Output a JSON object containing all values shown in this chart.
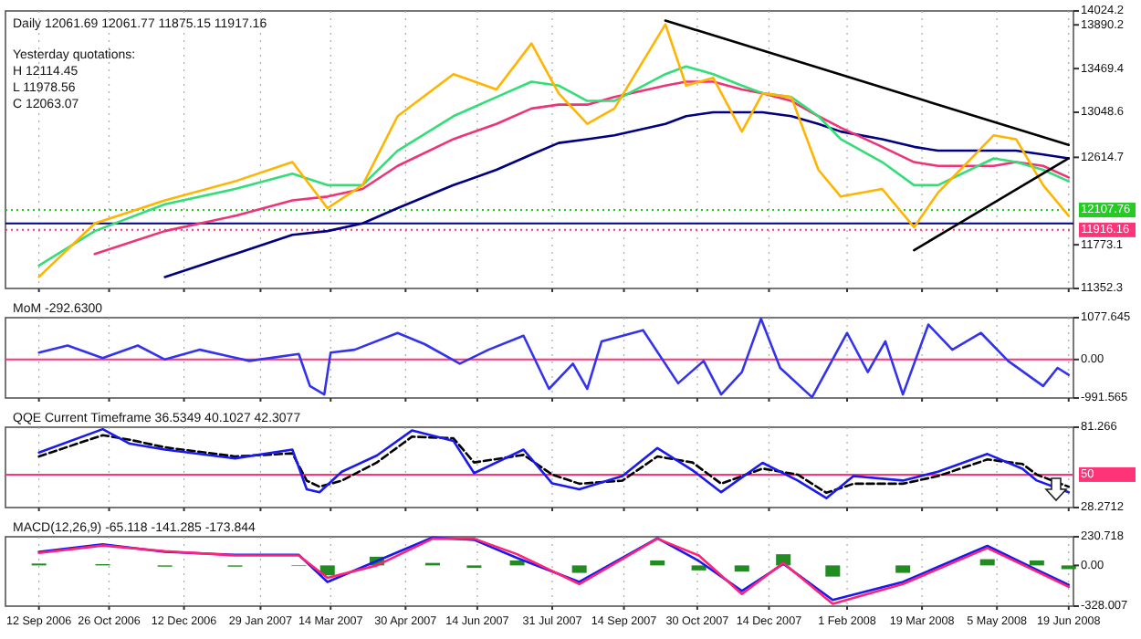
{
  "chart_data": [
    {
      "type": "line",
      "title": "Daily 12061.69 12061.77 11875.15 11917.16",
      "annotations": [
        "Yesterday quotations:",
        "H 12114.45",
        "L 11978.56",
        "C 12063.07"
      ],
      "tick_labels": "y",
      "grid": "x",
      "xlim": [
        "2006-08-22",
        "2008-06-22"
      ],
      "xticks": [
        {
          "value": "2006-09-12",
          "label": null
        },
        {
          "value": "2006-10-26",
          "label": null
        },
        {
          "value": "2006-12-12",
          "label": null
        },
        {
          "value": "2007-01-29",
          "label": null
        },
        {
          "value": "2007-03-14",
          "label": null
        },
        {
          "value": "2007-04-30",
          "label": null
        },
        {
          "value": "2007-06-14",
          "label": null
        },
        {
          "value": "2007-07-31",
          "label": null
        },
        {
          "value": "2007-09-14",
          "label": null
        },
        {
          "value": "2007-10-30",
          "label": null
        },
        {
          "value": "2007-12-14",
          "label": null
        },
        {
          "value": "2008-02-01",
          "label": null
        },
        {
          "value": "2008-03-19",
          "label": null
        },
        {
          "value": "2008-05-05",
          "label": null
        },
        {
          "value": "2008-06-19",
          "label": null
        }
      ],
      "ylim": [
        11352.3,
        14024.2
      ],
      "yticks": [
        11352.3,
        11773.1,
        12614.7,
        13048.6,
        13469.4,
        13890.2,
        14024.2
      ],
      "x": [
        "2006-09-12",
        "2006-10-17",
        "2006-11-30",
        "2007-01-13",
        "2007-02-18",
        "2007-03-12",
        "2007-04-03",
        "2007-04-25",
        "2007-05-30",
        "2007-06-26",
        "2007-07-18",
        "2007-08-04",
        "2007-08-22",
        "2007-09-08",
        "2007-10-10",
        "2007-10-23",
        "2007-11-09",
        "2007-11-27",
        "2007-12-10",
        "2007-12-28",
        "2008-01-14",
        "2008-01-28",
        "2008-02-23",
        "2008-03-14",
        "2008-03-29",
        "2008-05-03",
        "2008-05-17",
        "2008-06-03",
        "2008-06-19"
      ],
      "ref_lines": [
        {
          "axis": "y",
          "value": 12107.76,
          "label": "12107.76",
          "color": "#22cc22",
          "line_style": "dotted"
        },
        {
          "axis": "y",
          "value": 11978.56,
          "color": "#000080",
          "line_style": "solid"
        },
        {
          "axis": "y",
          "value": 11916.16,
          "label": "11916.16",
          "color": "#ff3377",
          "line_style": "dotted"
        }
      ],
      "series": [
        {
          "color": "#000080",
          "values": [
            null,
            null,
            11463,
            11684,
            11868,
            11905,
            11979,
            12126,
            12347,
            12495,
            12642,
            12753,
            12790,
            12827,
            12937,
            13011,
            13048,
            13048,
            13048,
            13011,
            12937,
            12863,
            12790,
            12716,
            12679,
            12679,
            12679,
            12642,
            12605
          ]
        },
        {
          "color": "#ee3377",
          "values": [
            null,
            11684,
            11905,
            12052,
            12200,
            12237,
            12310,
            12532,
            12790,
            12937,
            13085,
            13122,
            13122,
            13195,
            13306,
            13343,
            13343,
            13269,
            13232,
            13158,
            13011,
            12900,
            12716,
            12569,
            12532,
            12532,
            12569,
            12532,
            12421
          ]
        },
        {
          "color": "#33dd77",
          "values": [
            11573,
            11905,
            12163,
            12310,
            12458,
            12347,
            12347,
            12679,
            13011,
            13195,
            13343,
            13306,
            13158,
            13158,
            13416,
            13490,
            13416,
            13306,
            13232,
            13195,
            13011,
            12790,
            12569,
            12347,
            12347,
            12605,
            12569,
            12495,
            12384
          ]
        },
        {
          "color": "#ffb400",
          "values": [
            11463,
            11979,
            12200,
            12384,
            12569,
            12126,
            12347,
            13011,
            13416,
            13269,
            13711,
            13232,
            12937,
            13085,
            13895,
            13306,
            13380,
            12863,
            13232,
            13195,
            12495,
            12237,
            12310,
            11942,
            12274,
            12827,
            12790,
            12347,
            12052
          ]
        },
        {
          "type": "line",
          "color": "#000000",
          "x": [
            "2007-10-10",
            "2008-06-19"
          ],
          "values": [
            13932,
            12734
          ]
        },
        {
          "type": "line",
          "color": "#000000",
          "x": [
            "2008-03-14",
            "2008-06-19"
          ],
          "values": [
            11721,
            12605
          ]
        }
      ]
    },
    {
      "type": "line",
      "title": "MoM -292.6300",
      "tick_labels": "y",
      "grid": "x",
      "xlim": [
        "2006-08-22",
        "2008-06-22"
      ],
      "xticks": [
        {
          "value": "2006-09-12",
          "label": null
        },
        {
          "value": "2006-10-26",
          "label": null
        },
        {
          "value": "2006-12-12",
          "label": null
        },
        {
          "value": "2007-01-29",
          "label": null
        },
        {
          "value": "2007-03-14",
          "label": null
        },
        {
          "value": "2007-04-30",
          "label": null
        },
        {
          "value": "2007-06-14",
          "label": null
        },
        {
          "value": "2007-07-31",
          "label": null
        },
        {
          "value": "2007-09-14",
          "label": null
        },
        {
          "value": "2007-10-30",
          "label": null
        },
        {
          "value": "2007-12-14",
          "label": null
        },
        {
          "value": "2008-02-01",
          "label": null
        },
        {
          "value": "2008-03-19",
          "label": null
        },
        {
          "value": "2008-05-05",
          "label": null
        },
        {
          "value": "2008-06-19",
          "label": null
        }
      ],
      "ylim": [
        -991.565,
        1077.645
      ],
      "yticks": [
        -991.565,
        {
          "value": 0,
          "label": "0.00"
        },
        1077.645
      ],
      "ref_lines": [
        {
          "axis": "y",
          "value": 0,
          "color": "#ff3377",
          "line_style": "solid"
        }
      ],
      "x": [
        "2006-09-12",
        "2006-09-30",
        "2006-10-22",
        "2006-11-13",
        "2006-11-30",
        "2006-12-22",
        "2007-01-22",
        "2007-02-22",
        "2007-03-01",
        "2007-03-10",
        "2007-03-14",
        "2007-03-29",
        "2007-04-25",
        "2007-05-12",
        "2007-06-03",
        "2007-06-21",
        "2007-07-13",
        "2007-07-29",
        "2007-08-13",
        "2007-08-22",
        "2007-08-31",
        "2007-09-26",
        "2007-10-18",
        "2007-11-03",
        "2007-11-14",
        "2007-11-27",
        "2007-12-09",
        "2007-12-21",
        "2008-01-10",
        "2008-02-01",
        "2008-02-14",
        "2008-02-25",
        "2008-03-07",
        "2008-03-23",
        "2008-04-07",
        "2008-04-25",
        "2008-05-12",
        "2008-06-03",
        "2008-06-12",
        "2008-06-19"
      ],
      "series": [
        {
          "color": "#3333ee",
          "values": [
            180,
            360,
            36,
            360,
            0,
            252,
            -36,
            144,
            -684,
            -900,
            180,
            252,
            684,
            396,
            -108,
            252,
            612,
            -756,
            -108,
            -756,
            468,
            756,
            -612,
            -36,
            -900,
            -324,
            1050,
            -216,
            -972,
            684,
            -324,
            468,
            -900,
            900,
            252,
            684,
            -36,
            -684,
            -216,
            -396
          ]
        }
      ]
    },
    {
      "type": "line",
      "title": "QQE Current Timeframe 36.5349 40.1027 42.3077",
      "tick_labels": "y",
      "grid": "x",
      "xlim": [
        "2006-08-22",
        "2008-06-22"
      ],
      "xticks": [
        {
          "value": "2006-09-12",
          "label": null
        },
        {
          "value": "2006-10-26",
          "label": null
        },
        {
          "value": "2006-12-12",
          "label": null
        },
        {
          "value": "2007-01-29",
          "label": null
        },
        {
          "value": "2007-03-14",
          "label": null
        },
        {
          "value": "2007-04-30",
          "label": null
        },
        {
          "value": "2007-06-14",
          "label": null
        },
        {
          "value": "2007-07-31",
          "label": null
        },
        {
          "value": "2007-09-14",
          "label": null
        },
        {
          "value": "2007-10-30",
          "label": null
        },
        {
          "value": "2007-12-14",
          "label": null
        },
        {
          "value": "2008-02-01",
          "label": null
        },
        {
          "value": "2008-03-19",
          "label": null
        },
        {
          "value": "2008-05-05",
          "label": null
        },
        {
          "value": "2008-06-19",
          "label": null
        }
      ],
      "ylim": [
        28.2712,
        81.266
      ],
      "yticks": [
        28.2712,
        81.266
      ],
      "ref_lines": [
        {
          "axis": "y",
          "value": 50,
          "label": "50",
          "color": "#ff3377",
          "line_style": "solid"
        }
      ],
      "x": [
        "2006-09-12",
        "2006-10-22",
        "2006-11-08",
        "2006-11-30",
        "2007-01-13",
        "2007-02-18",
        "2007-02-27",
        "2007-03-07",
        "2007-03-21",
        "2007-04-12",
        "2007-05-04",
        "2007-05-30",
        "2007-06-12",
        "2007-07-13",
        "2007-07-31",
        "2007-08-17",
        "2007-09-13",
        "2007-10-05",
        "2007-10-27",
        "2007-11-14",
        "2007-12-10",
        "2008-01-01",
        "2008-01-19",
        "2008-02-05",
        "2008-03-07",
        "2008-03-29",
        "2008-04-29",
        "2008-05-21",
        "2008-05-30",
        "2008-06-19"
      ],
      "series": [
        {
          "color": "#000000",
          "line_style": "dashed",
          "values": [
            62,
            76,
            73,
            68,
            62,
            64,
            46,
            42,
            46,
            58,
            75,
            74,
            58,
            63,
            50,
            44,
            46,
            62,
            58,
            44,
            54,
            50,
            38,
            44,
            44,
            49,
            60,
            57,
            50,
            42
          ]
        },
        {
          "color": "#1a1aee",
          "values": [
            64.6,
            80,
            70.4,
            66.5,
            60.7,
            66.5,
            40.3,
            38.4,
            51.9,
            62.6,
            79.1,
            72.3,
            51,
            66.5,
            44.2,
            40.3,
            49,
            67.5,
            52.9,
            38.4,
            57.8,
            46.1,
            34.5,
            49,
            46.1,
            51.9,
            63.6,
            53.9,
            46.1,
            38.4
          ]
        }
      ]
    },
    {
      "type": "line",
      "title": "MACD(12,26,9) -65.118 -141.285 -173.844",
      "grid": "x",
      "xlim": [
        "2006-08-22",
        "2008-06-22"
      ],
      "xticks": [
        {
          "value": "2006-09-12",
          "label": "12 Sep 2006"
        },
        {
          "value": "2006-10-26",
          "label": "26 Oct 2006"
        },
        {
          "value": "2006-12-12",
          "label": "12 Dec 2006"
        },
        {
          "value": "2007-01-29",
          "label": "29 Jan 2007"
        },
        {
          "value": "2007-03-14",
          "label": "14 Mar 2007"
        },
        {
          "value": "2007-04-30",
          "label": "30 Apr 2007"
        },
        {
          "value": "2007-06-14",
          "label": "14 Jun 2007"
        },
        {
          "value": "2007-07-31",
          "label": "31 Jul 2007"
        },
        {
          "value": "2007-09-14",
          "label": "14 Sep 2007"
        },
        {
          "value": "2007-10-30",
          "label": "30 Oct 2007"
        },
        {
          "value": "2007-12-14",
          "label": "14 Dec 2007"
        },
        {
          "value": "2008-02-01",
          "label": "1 Feb 2008"
        },
        {
          "value": "2008-03-19",
          "label": "19 Mar 2008"
        },
        {
          "value": "2008-05-05",
          "label": "5 May 2008"
        },
        {
          "value": "2008-06-19",
          "label": "19 Jun 2008"
        }
      ],
      "ylim": [
        -328.007,
        230.718
      ],
      "yticks": [
        -328.007,
        {
          "value": 0,
          "label": "0.00"
        },
        230.718
      ],
      "x": [
        "2006-09-12",
        "2006-10-22",
        "2006-11-30",
        "2007-01-13",
        "2007-02-22",
        "2007-03-12",
        "2007-04-12",
        "2007-05-17",
        "2007-06-12",
        "2007-07-09",
        "2007-08-17",
        "2007-10-05",
        "2007-10-31",
        "2007-11-27",
        "2007-12-23",
        "2008-01-23",
        "2008-03-07",
        "2008-04-29",
        "2008-05-30",
        "2008-06-19"
      ],
      "series": [
        {
          "type": "bar",
          "color": "#228b22",
          "values": [
            15,
            10,
            -10,
            -10,
            -5,
            -80,
            70,
            20,
            -20,
            40,
            -60,
            40,
            -40,
            -50,
            90,
            -90,
            -60,
            50,
            40,
            -30
          ]
        },
        {
          "color": "#1a1aee",
          "values": [
            109,
            169,
            109,
            85,
            85,
            -133,
            36,
            225,
            206,
            60,
            -133,
            218,
            36,
            -206,
            12,
            -278,
            -133,
            157,
            -36,
            -157
          ]
        },
        {
          "color": "#ff2277",
          "values": [
            100,
            160,
            115,
            80,
            80,
            -100,
            0,
            215,
            215,
            90,
            -150,
            215,
            80,
            -230,
            20,
            -310,
            -150,
            140,
            -50,
            -173
          ]
        }
      ]
    }
  ]
}
